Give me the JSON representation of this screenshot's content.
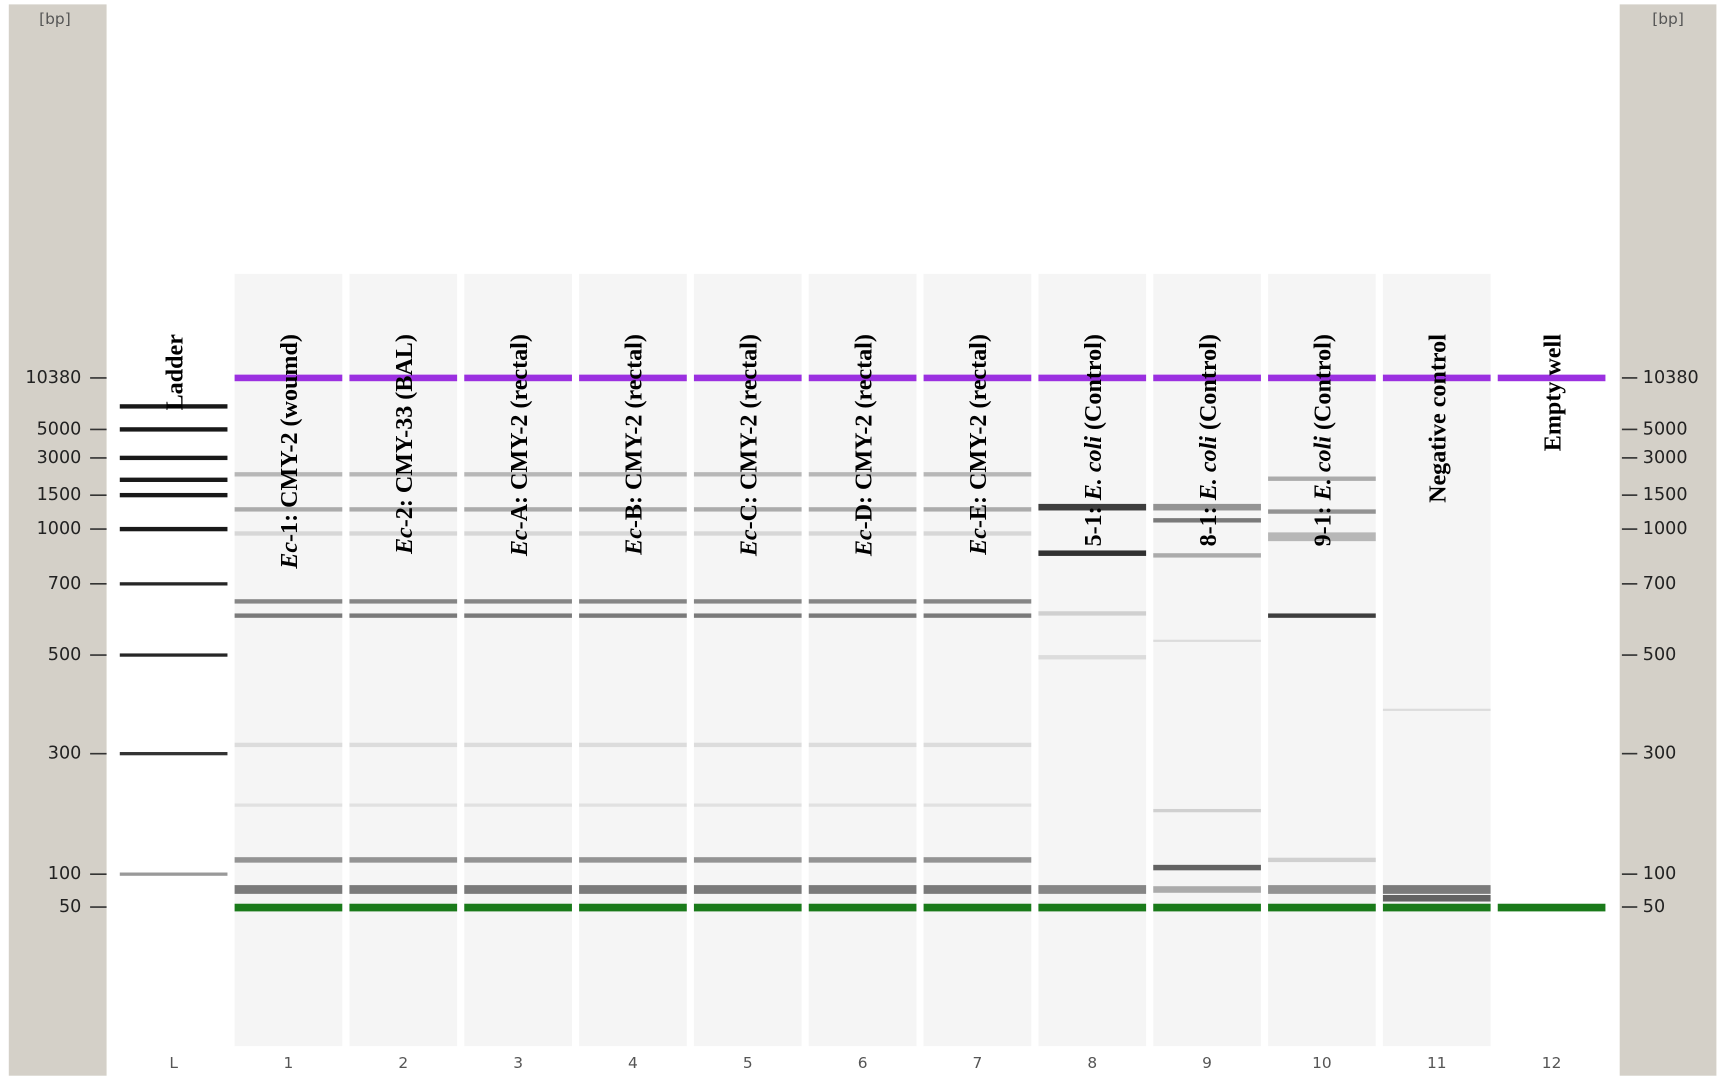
{
  "unit_label": "[bp]",
  "markers": [
    10380,
    5000,
    3000,
    1500,
    1000,
    700,
    500,
    300,
    100,
    50
  ],
  "lanes": [
    {
      "number": "L",
      "label": [
        {
          "text": "Ladder"
        }
      ]
    },
    {
      "number": "1",
      "label": [
        {
          "text": "Ec",
          "italic": true
        },
        {
          "text": "-1: CMY-2 (woumd)"
        }
      ]
    },
    {
      "number": "2",
      "label": [
        {
          "text": "Ec",
          "italic": true
        },
        {
          "text": "-2: CMY-33 (BAL)"
        }
      ]
    },
    {
      "number": "3",
      "label": [
        {
          "text": "Ec",
          "italic": true
        },
        {
          "text": "-A: CMY-2 (rectal)"
        }
      ]
    },
    {
      "number": "4",
      "label": [
        {
          "text": "Ec",
          "italic": true
        },
        {
          "text": "-B: CMY-2 (rectal)"
        }
      ]
    },
    {
      "number": "5",
      "label": [
        {
          "text": "Ec",
          "italic": true
        },
        {
          "text": "-C: CMY-2 (rectal)"
        }
      ]
    },
    {
      "number": "6",
      "label": [
        {
          "text": "Ec",
          "italic": true
        },
        {
          "text": "-D: CMY-2 (rectal)"
        }
      ]
    },
    {
      "number": "7",
      "label": [
        {
          "text": "Ec",
          "italic": true
        },
        {
          "text": "-E: CMY-2 (rectal)"
        }
      ]
    },
    {
      "number": "8",
      "label": [
        {
          "text": "5-1: "
        },
        {
          "text": "E. coli",
          "italic": true
        },
        {
          "text": " (Control)"
        }
      ]
    },
    {
      "number": "9",
      "label": [
        {
          "text": "8-1: "
        },
        {
          "text": "E. coli",
          "italic": true
        },
        {
          "text": " (Control)"
        }
      ]
    },
    {
      "number": "10",
      "label": [
        {
          "text": "9-1: "
        },
        {
          "text": "E. coli",
          "italic": true
        },
        {
          "text": " (Control)"
        }
      ]
    },
    {
      "number": "11",
      "label": [
        {
          "text": "Negative control"
        }
      ]
    },
    {
      "number": "12",
      "label": [
        {
          "text": "Empty well"
        }
      ]
    }
  ]
}
